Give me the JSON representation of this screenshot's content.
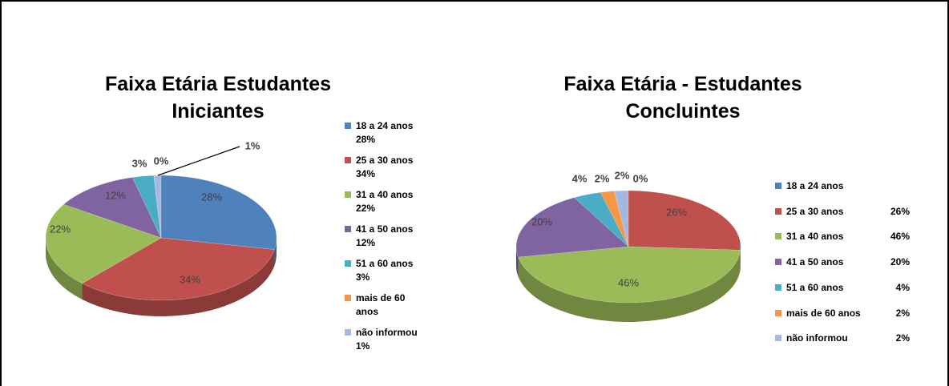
{
  "chart_data": [
    {
      "type": "pie",
      "title": "Faixa Etária Estudantes Iniciantes",
      "categories": [
        "18 a 24 anos",
        "25 a 30 anos",
        "31 a 40 anos",
        "41 a 50 anos",
        "51 a 60 anos",
        "mais de 60 anos",
        "não informou"
      ],
      "values": [
        28,
        34,
        22,
        12,
        3,
        0,
        1
      ],
      "value_labels": [
        "28%",
        "34%",
        "22%",
        "12%",
        "3%",
        "0%",
        "1%"
      ],
      "legend_value_labels": [
        "28%",
        "34%",
        "22%",
        "12%",
        "3%",
        null,
        "1%"
      ],
      "colors": [
        "#4f81bd",
        "#c0504d",
        "#9bbb59",
        "#8064a2",
        "#4bacc6",
        "#f79646",
        "#a5b9e0"
      ]
    },
    {
      "type": "pie",
      "title": "Faixa Etária - Estudantes Concluintes",
      "categories": [
        "18 a 24 anos",
        "25 a 30 anos",
        "31 a 40 anos",
        "41 a 50 anos",
        "51 a 60 anos",
        "mais de 60 anos",
        "não informou"
      ],
      "values": [
        0,
        26,
        46,
        20,
        4,
        2,
        2
      ],
      "value_labels": [
        "0%",
        "26%",
        "46%",
        "20%",
        "4%",
        "2%",
        "2%"
      ],
      "legend_value_labels": [
        null,
        "26%",
        "46%",
        "20%",
        "4%",
        "2%",
        "2%"
      ],
      "colors": [
        "#4f81bd",
        "#c0504d",
        "#9bbb59",
        "#8064a2",
        "#4bacc6",
        "#f79646",
        "#a5b9e0"
      ]
    }
  ]
}
